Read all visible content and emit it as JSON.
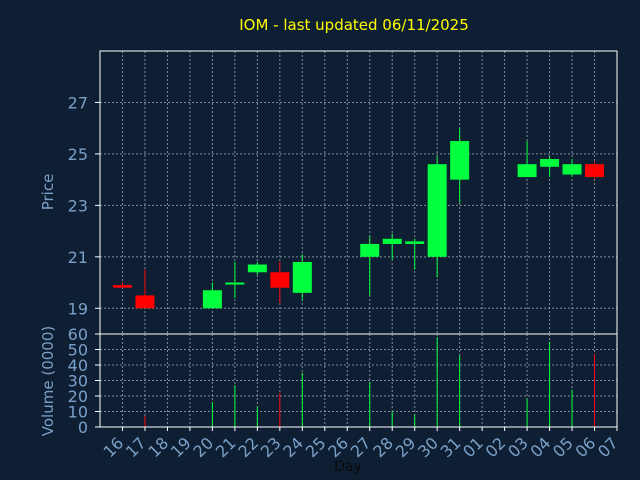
{
  "chart_data": {
    "type": "candlestick",
    "title": "IOM - last updated 06/11/2025",
    "xlabel": "Day",
    "ylabel_price": "Price",
    "ylabel_volume": "Volume (0000)",
    "grid": true,
    "x_ticks": [
      "16",
      "17",
      "18",
      "19",
      "20",
      "21",
      "22",
      "23",
      "24",
      "25",
      "26",
      "27",
      "28",
      "29",
      "30",
      "31",
      "01",
      "02",
      "03",
      "04",
      "05",
      "06",
      "07"
    ],
    "price_ticks": [
      19,
      21,
      23,
      25,
      27
    ],
    "price_ylim": [
      18.0,
      29.0
    ],
    "volume_ticks": [
      0,
      10,
      20,
      30,
      40,
      50,
      60
    ],
    "volume_ylim": [
      0,
      60
    ],
    "candles": [
      {
        "day": "16",
        "open": 19.9,
        "high": 20.0,
        "low": 19.8,
        "close": 19.8,
        "volume": 0
      },
      {
        "day": "17",
        "open": 19.5,
        "high": 20.5,
        "low": 19.0,
        "close": 19.0,
        "volume": 7
      },
      {
        "day": "20",
        "open": 19.0,
        "high": 20.0,
        "low": 19.0,
        "close": 19.7,
        "volume": 16
      },
      {
        "day": "21",
        "open": 20.0,
        "high": 20.8,
        "low": 19.4,
        "close": 20.0,
        "volume": 27
      },
      {
        "day": "22",
        "open": 20.4,
        "high": 20.8,
        "low": 20.3,
        "close": 20.7,
        "volume": 13
      },
      {
        "day": "23",
        "open": 20.4,
        "high": 20.8,
        "low": 19.2,
        "close": 19.8,
        "volume": 22
      },
      {
        "day": "24",
        "open": 19.6,
        "high": 21.1,
        "low": 19.3,
        "close": 20.8,
        "volume": 35
      },
      {
        "day": "27",
        "open": 21.0,
        "high": 21.8,
        "low": 19.5,
        "close": 21.5,
        "volume": 29
      },
      {
        "day": "28",
        "open": 21.5,
        "high": 21.9,
        "low": 20.9,
        "close": 21.7,
        "volume": 10
      },
      {
        "day": "29",
        "open": 21.5,
        "high": 21.7,
        "low": 20.5,
        "close": 21.6,
        "volume": 8
      },
      {
        "day": "30",
        "open": 21.0,
        "high": 24.9,
        "low": 20.2,
        "close": 24.6,
        "volume": 58
      },
      {
        "day": "31",
        "open": 24.0,
        "high": 26.0,
        "low": 23.1,
        "close": 25.5,
        "volume": 46
      },
      {
        "day": "03",
        "open": 24.1,
        "high": 25.5,
        "low": 24.1,
        "close": 24.6,
        "volume": 18
      },
      {
        "day": "04",
        "open": 24.5,
        "high": 24.9,
        "low": 24.1,
        "close": 24.8,
        "volume": 55
      },
      {
        "day": "05",
        "open": 24.2,
        "high": 24.8,
        "low": 24.1,
        "close": 24.6,
        "volume": 24
      },
      {
        "day": "06",
        "open": 24.6,
        "high": 24.7,
        "low": 24.0,
        "close": 24.1,
        "volume": 47
      }
    ],
    "colors": {
      "background": "#0f1f33",
      "axis_text": "#7aa0c8",
      "title": "#ffff00",
      "frame": "#ffffff",
      "up": "#00ff3c",
      "down": "#ff0000"
    }
  }
}
